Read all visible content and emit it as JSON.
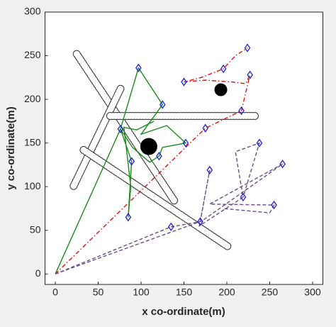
{
  "chart_data": {
    "type": "path-plan",
    "xlabel": "x co-ordinate(m)",
    "ylabel": "y co-ordinate(m)",
    "xlim": [
      -12,
      312
    ],
    "ylim": [
      -12,
      300
    ],
    "xticks": [
      0,
      50,
      100,
      150,
      200,
      250,
      300
    ],
    "yticks": [
      0,
      50,
      100,
      150,
      200,
      250,
      300
    ],
    "obstacles": [
      {
        "x": [
          25,
          140
        ],
        "y": [
          252,
          82
        ]
      },
      {
        "x": [
          76,
          21
        ],
        "y": [
          212,
          100
        ]
      },
      {
        "x": [
          64,
          235
        ],
        "y": [
          181,
          181
        ]
      },
      {
        "x": [
          33,
          202
        ],
        "y": [
          142,
          31
        ]
      }
    ],
    "targets": {
      "x": [
        109,
        193
      ],
      "y": [
        146,
        211
      ],
      "marker_size": [
        24,
        18
      ],
      "color": "#000000"
    },
    "series": [
      {
        "color": "#e01010",
        "style": "dashdot",
        "x": [
          0,
          175,
          217,
          227,
          222,
          205,
          175,
          150,
          170,
          196,
          210,
          224
        ],
        "y": [
          0,
          167,
          187,
          228,
          218,
          220,
          222,
          220,
          225,
          235,
          250,
          259
        ],
        "waypoints": {
          "x": [
            175,
            217,
            227,
            150,
            196,
            224
          ],
          "y": [
            167,
            187,
            228,
            220,
            235,
            259
          ]
        }
      },
      {
        "color": "#1a8a1a",
        "style": "solid",
        "x": [
          0,
          76,
          97,
          125,
          100,
          130,
          152,
          125,
          121,
          110,
          90,
          76,
          89,
          85,
          88,
          80,
          95,
          115
        ],
        "y": [
          0,
          166,
          236,
          194,
          160,
          170,
          150,
          145,
          135,
          128,
          145,
          166,
          129,
          65,
          100,
          168,
          165,
          175
        ],
        "waypoints": {
          "x": [
            97,
            125,
            152,
            121,
            89,
            85,
            76
          ],
          "y": [
            236,
            194,
            150,
            135,
            129,
            65,
            166
          ]
        }
      },
      {
        "color": "#6a4c8c",
        "style": "dashed",
        "x": [
          0,
          169,
          180,
          168,
          219,
          210,
          238,
          219
        ],
        "y": [
          0,
          60,
          119,
          55,
          88,
          140,
          150,
          88
        ],
        "waypoints": {
          "x": [
            169,
            180,
            219,
            238
          ],
          "y": [
            60,
            119,
            88,
            150
          ]
        }
      },
      {
        "color": "#6a4c8c",
        "style": "dashed",
        "x": [
          0,
          135,
          170,
          265,
          180,
          255,
          250,
          195
        ],
        "y": [
          0,
          54,
          60,
          126,
          80,
          79,
          70,
          75
        ],
        "waypoints": {
          "x": [
            135,
            265,
            255
          ],
          "y": [
            54,
            126,
            79
          ]
        }
      }
    ],
    "waypoint_color": "#2020d0"
  }
}
